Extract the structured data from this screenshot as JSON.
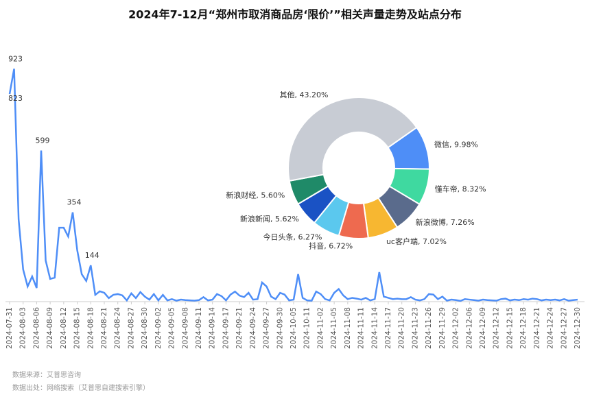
{
  "chart_data": [
    {
      "type": "line",
      "title": "2024年7-12月“郑州市取消商品房‘限价’”相关声量走势及站点分布",
      "color": "#4e8ef7",
      "ylim": [
        0,
        1000
      ],
      "categories": [
        "2024-07-31",
        null,
        null,
        "2024-08-03",
        null,
        null,
        "2024-08-06",
        null,
        null,
        "2024-08-09",
        null,
        null,
        "2024-08-12",
        null,
        null,
        "2024-08-15",
        null,
        null,
        "2024-08-18",
        null,
        null,
        "2024-08-21",
        null,
        null,
        "2024-08-24",
        null,
        null,
        "2024-08-27",
        null,
        null,
        "2024-08-30",
        null,
        null,
        "2024-09-02",
        null,
        null,
        "2024-09-05",
        null,
        null,
        "2024-09-08",
        null,
        null,
        "2024-09-11",
        null,
        null,
        "2024-09-14",
        null,
        null,
        "2024-09-17",
        null,
        null,
        "2024-09-21",
        null,
        null,
        "2024-09-24",
        null,
        null,
        "2024-09-27",
        null,
        null,
        "2024-09-30",
        null,
        null,
        "2024-10-05",
        null,
        null,
        "2024-10-11",
        null,
        null,
        "2024-11-02",
        null,
        null,
        "2024-11-05",
        null,
        null,
        "2024-11-08",
        null,
        null,
        "2024-11-11",
        null,
        null,
        "2024-11-14",
        null,
        null,
        "2024-11-17",
        null,
        null,
        "2024-11-20",
        null,
        null,
        "2024-11-23",
        null,
        null,
        "2024-11-26",
        null,
        null,
        "2024-11-29",
        null,
        null,
        "2024-12-02",
        null,
        null,
        "2024-12-06",
        null,
        null,
        "2024-12-09",
        null,
        null,
        "2024-12-12",
        null,
        null,
        "2024-12-15",
        null,
        null,
        "2024-12-18",
        null,
        null,
        "2024-12-21",
        null,
        null,
        "2024-12-24",
        null,
        null,
        "2024-12-27",
        null,
        null,
        "2024-12-30"
      ],
      "values": [
        823,
        923,
        326,
        128,
        60,
        100,
        54,
        599,
        163,
        90,
        95,
        293,
        293,
        258,
        354,
        204,
        109,
        82,
        144,
        27,
        41,
        35,
        14,
        27,
        30,
        25,
        5,
        33,
        14,
        38,
        20,
        8,
        30,
        5,
        27,
        5,
        10,
        4,
        8,
        6,
        5,
        4,
        6,
        18,
        5,
        8,
        30,
        22,
        5,
        28,
        40,
        24,
        18,
        35,
        8,
        10,
        76,
        60,
        20,
        10,
        35,
        28,
        5,
        8,
        109,
        15,
        5,
        4,
        40,
        30,
        10,
        5,
        35,
        50,
        25,
        10,
        15,
        12,
        8,
        15,
        5,
        10,
        117,
        20,
        15,
        10,
        12,
        10,
        10,
        18,
        8,
        5,
        10,
        30,
        28,
        10,
        20,
        4,
        8,
        6,
        3,
        10,
        8,
        6,
        4,
        8,
        6,
        5,
        4,
        10,
        12,
        5,
        8,
        6,
        10,
        8,
        12,
        10,
        5,
        8,
        6,
        8,
        5,
        10,
        4,
        6,
        8
      ],
      "value_labels": [
        823,
        923,
        null,
        null,
        null,
        null,
        null,
        599,
        null,
        null,
        null,
        null,
        null,
        null,
        354,
        null,
        null,
        null,
        144,
        null,
        null,
        null,
        null,
        null,
        null,
        null,
        null,
        null,
        null,
        null,
        null,
        null,
        null,
        null,
        null,
        null,
        null,
        null,
        null,
        null,
        null,
        null,
        null,
        null,
        null,
        null,
        null,
        null,
        null,
        null,
        null,
        null,
        null,
        null,
        null,
        null,
        null,
        null,
        null,
        null,
        null,
        null,
        null,
        null,
        null,
        null,
        null,
        null,
        null,
        null,
        null,
        null,
        null,
        null,
        null,
        null,
        null,
        null,
        null,
        null,
        null,
        null,
        null,
        null,
        null,
        null,
        null,
        null,
        null,
        null,
        null,
        null,
        null,
        null,
        null,
        null,
        null,
        null,
        null,
        null,
        null,
        null,
        null,
        null,
        null,
        null,
        null,
        null,
        null,
        null,
        null,
        null,
        null,
        null,
        null,
        null,
        null,
        null,
        null,
        null,
        null,
        null,
        null,
        null,
        null,
        null,
        null
      ]
    },
    {
      "type": "pie",
      "values": [
        9.98,
        8.32,
        7.26,
        7.02,
        6.72,
        6.27,
        5.62,
        5.6,
        43.2
      ],
      "value_labels": [
        "微信, 9.98%",
        "懂车帝, 8.32%",
        "新浪微博, 7.26%",
        "uc客户端, 7.02%",
        "抖音, 6.72%",
        "今日头条, 6.27%",
        "新浪新闻, 5.62%",
        "新浪财经, 5.60%",
        "其他, 43.20%"
      ],
      "colors": [
        "#4e8ef7",
        "#3fd9a0",
        "#5a6b8c",
        "#f7b731",
        "#ee6a4f",
        "#5bc8ee",
        "#1a52c4",
        "#1f8a68",
        "#c8ccd4"
      ]
    }
  ],
  "footer": {
    "source": "数据来源：艾普思咨询",
    "origin": "数据出处：网络搜索（艾普思自建搜索引擎）"
  }
}
